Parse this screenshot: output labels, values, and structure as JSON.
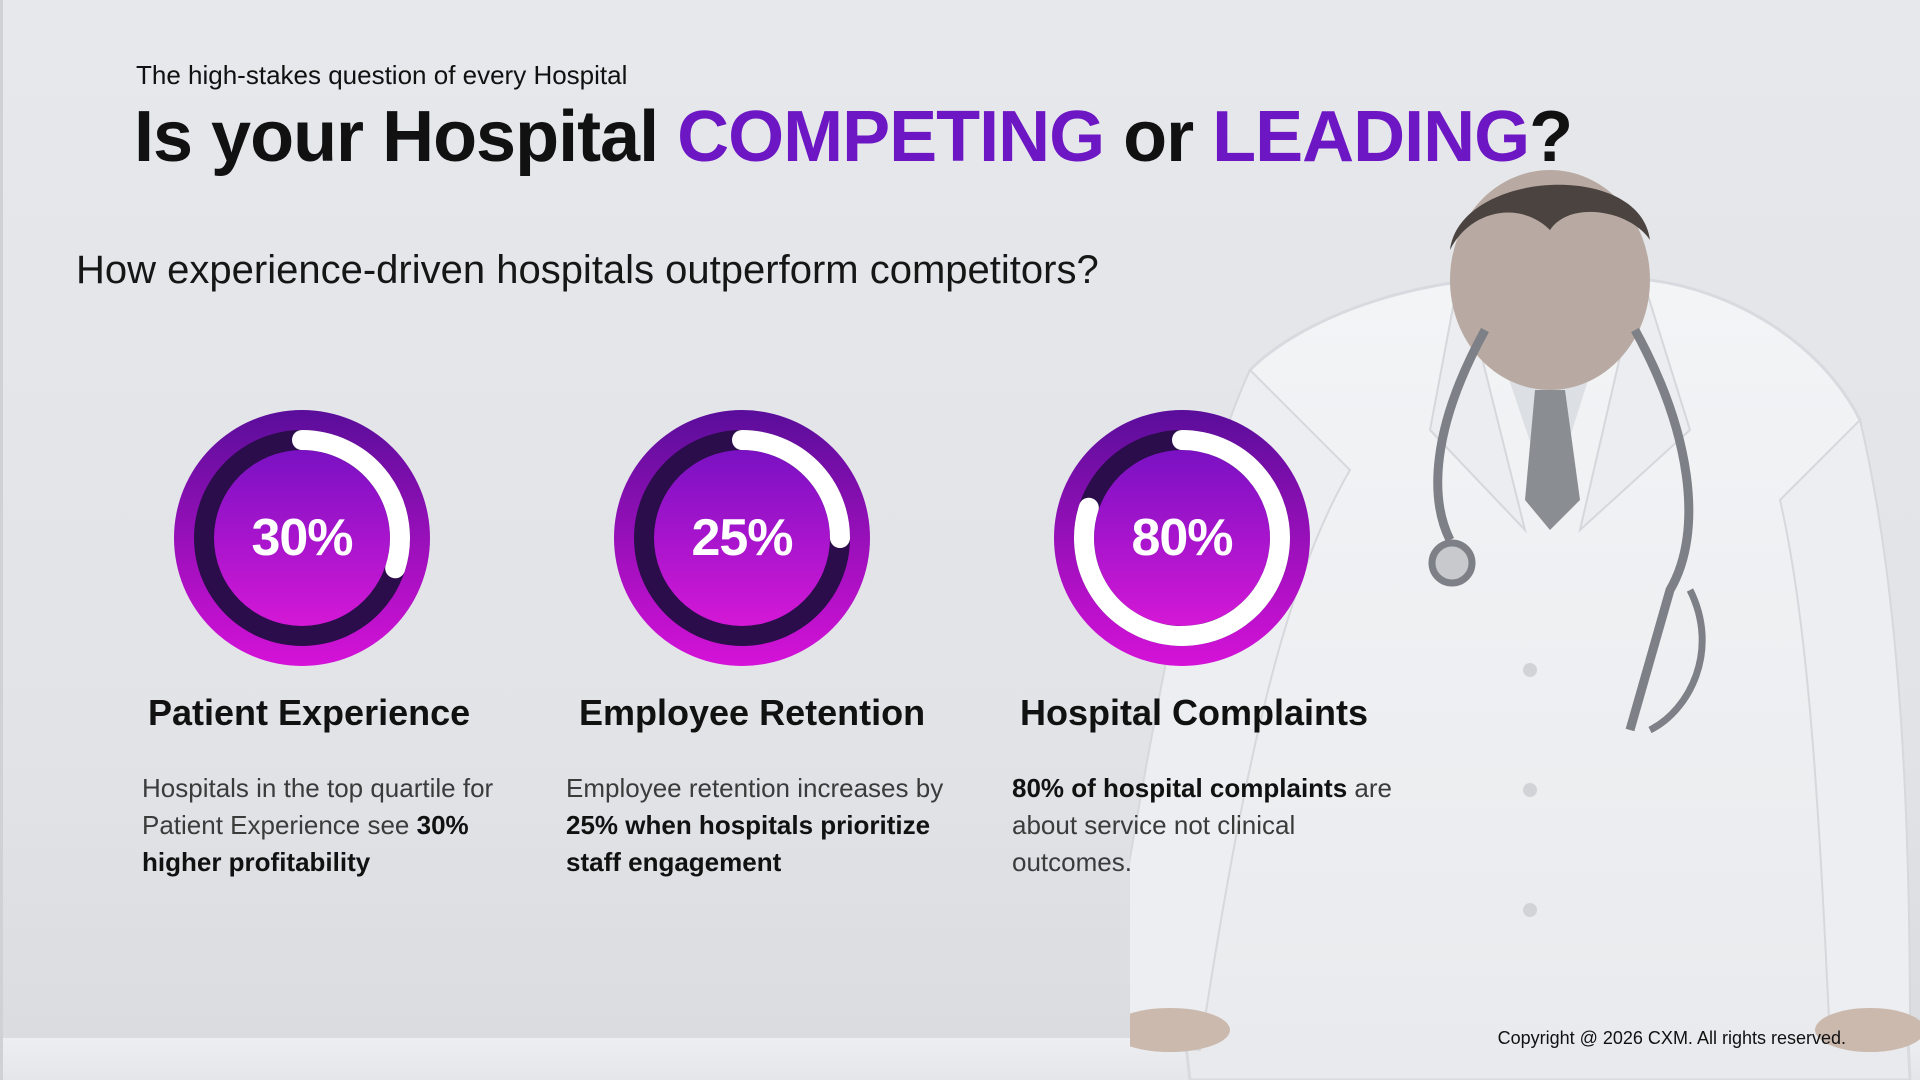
{
  "header": {
    "eyebrow": "The high-stakes question of every Hospital",
    "title_part1": "Is your Hospital",
    "title_accent1": "COMPETING",
    "title_part2": "or",
    "title_accent2": "LEADING",
    "title_end": "?"
  },
  "subheading": "How experience-driven hospitals outperform competitors?",
  "colors": {
    "accent": "#6d16c4",
    "ring_outer": "#a213c9",
    "ring_dark": "#2a0d4a",
    "ring_inner_top": "#8b12c8",
    "ring_inner_bottom": "#d11bd6",
    "ring_arc": "#ffffff"
  },
  "stats": [
    {
      "percent_label": "30%",
      "arc_fraction": 0.3,
      "title": "Patient Experience",
      "desc_plain": "Hospitals in the top quartile for Patient Experience see ",
      "desc_bold": "30% higher profitability",
      "desc_after": ""
    },
    {
      "percent_label": "25%",
      "arc_fraction": 0.25,
      "title": "Employee Retention",
      "desc_plain": "Employee retention increases by ",
      "desc_bold": "25% when hospitals prioritize staff engagement",
      "desc_after": ""
    },
    {
      "percent_label": "80%",
      "arc_fraction": 0.8,
      "title": "Hospital Complaints",
      "desc_plain": "",
      "desc_bold": "80% of hospital complaints",
      "desc_after": " are about service not clinical outcomes."
    }
  ],
  "footer": {
    "copyright": "Copyright @ 2026 CXM. All rights reserved."
  }
}
